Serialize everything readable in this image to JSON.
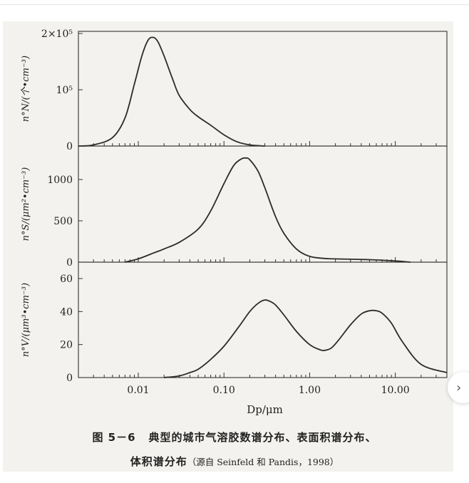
{
  "chart_data": [
    {
      "type": "line",
      "panel": "number",
      "ylabel": "n°N/(个•cm⁻³)",
      "ylim": [
        0,
        200000
      ],
      "yticks": [
        {
          "value": 0,
          "label": "0"
        },
        {
          "value": 100000,
          "label": "10⁵"
        },
        {
          "value": 200000,
          "label": "2×10⁵"
        }
      ],
      "xscale": "log",
      "xlim": [
        0.002,
        40
      ],
      "x": [
        0.002,
        0.003,
        0.005,
        0.007,
        0.009,
        0.011,
        0.013,
        0.015,
        0.017,
        0.02,
        0.025,
        0.03,
        0.04,
        0.05,
        0.07,
        0.1,
        0.14,
        0.2,
        0.3
      ],
      "y": [
        0,
        2000,
        15000,
        50000,
        110000,
        160000,
        188000,
        193000,
        185000,
        160000,
        120000,
        90000,
        65000,
        52000,
        37000,
        20000,
        8000,
        2000,
        0
      ]
    },
    {
      "type": "line",
      "panel": "surface",
      "ylabel": "n°S/(μm²•cm⁻³)",
      "ylim": [
        0,
        1400
      ],
      "yticks": [
        {
          "value": 0,
          "label": "0"
        },
        {
          "value": 500,
          "label": "500"
        },
        {
          "value": 1000,
          "label": "1000"
        }
      ],
      "xscale": "log",
      "xlim": [
        0.002,
        40
      ],
      "x": [
        0.007,
        0.01,
        0.015,
        0.02,
        0.03,
        0.05,
        0.07,
        0.1,
        0.13,
        0.16,
        0.18,
        0.2,
        0.25,
        0.3,
        0.4,
        0.5,
        0.7,
        1.0,
        1.5,
        2,
        5,
        10,
        15
      ],
      "y": [
        0,
        40,
        110,
        160,
        240,
        400,
        620,
        950,
        1170,
        1250,
        1260,
        1240,
        1100,
        900,
        550,
        350,
        160,
        70,
        45,
        40,
        30,
        15,
        0
      ]
    },
    {
      "type": "line",
      "panel": "volume",
      "ylabel": "n°V/(μm³•cm⁻³)",
      "ylim": [
        0,
        65
      ],
      "yticks": [
        {
          "value": 0,
          "label": "0"
        },
        {
          "value": 20,
          "label": "20"
        },
        {
          "value": 40,
          "label": "40"
        },
        {
          "value": 60,
          "label": "60"
        }
      ],
      "xscale": "log",
      "xlim": [
        0.002,
        40
      ],
      "xticks": [
        {
          "value": 0.01,
          "label": "0.01"
        },
        {
          "value": 0.1,
          "label": "0.10"
        },
        {
          "value": 1,
          "label": "1.00"
        },
        {
          "value": 10,
          "label": "10.00"
        }
      ],
      "xlabel": "Dp/μm",
      "x": [
        0.02,
        0.03,
        0.04,
        0.05,
        0.07,
        0.1,
        0.15,
        0.2,
        0.25,
        0.3,
        0.35,
        0.4,
        0.5,
        0.7,
        1.0,
        1.3,
        1.5,
        1.8,
        2.2,
        3,
        4,
        5,
        6,
        7,
        9,
        12,
        20,
        40
      ],
      "y": [
        0,
        1,
        3,
        5,
        11,
        19,
        31,
        40,
        45,
        47,
        46,
        44,
        38,
        28,
        20,
        17,
        16.5,
        18,
        23,
        32,
        38.5,
        40.5,
        40.5,
        39,
        33,
        22,
        8,
        3
      ]
    }
  ],
  "caption": {
    "figure_no": "图 5－6",
    "line1": "典型的城市气溶胶数谱分布、表面积谱分布、",
    "line2": "体积谱分布",
    "source": "（源自 Seinfeld 和 Pandis，1998）"
  },
  "colors": {
    "line": "#2b2b2b",
    "axis": "#333333",
    "paper": "#f3f2ee"
  },
  "side_button_icon": "chevron-right-icon"
}
